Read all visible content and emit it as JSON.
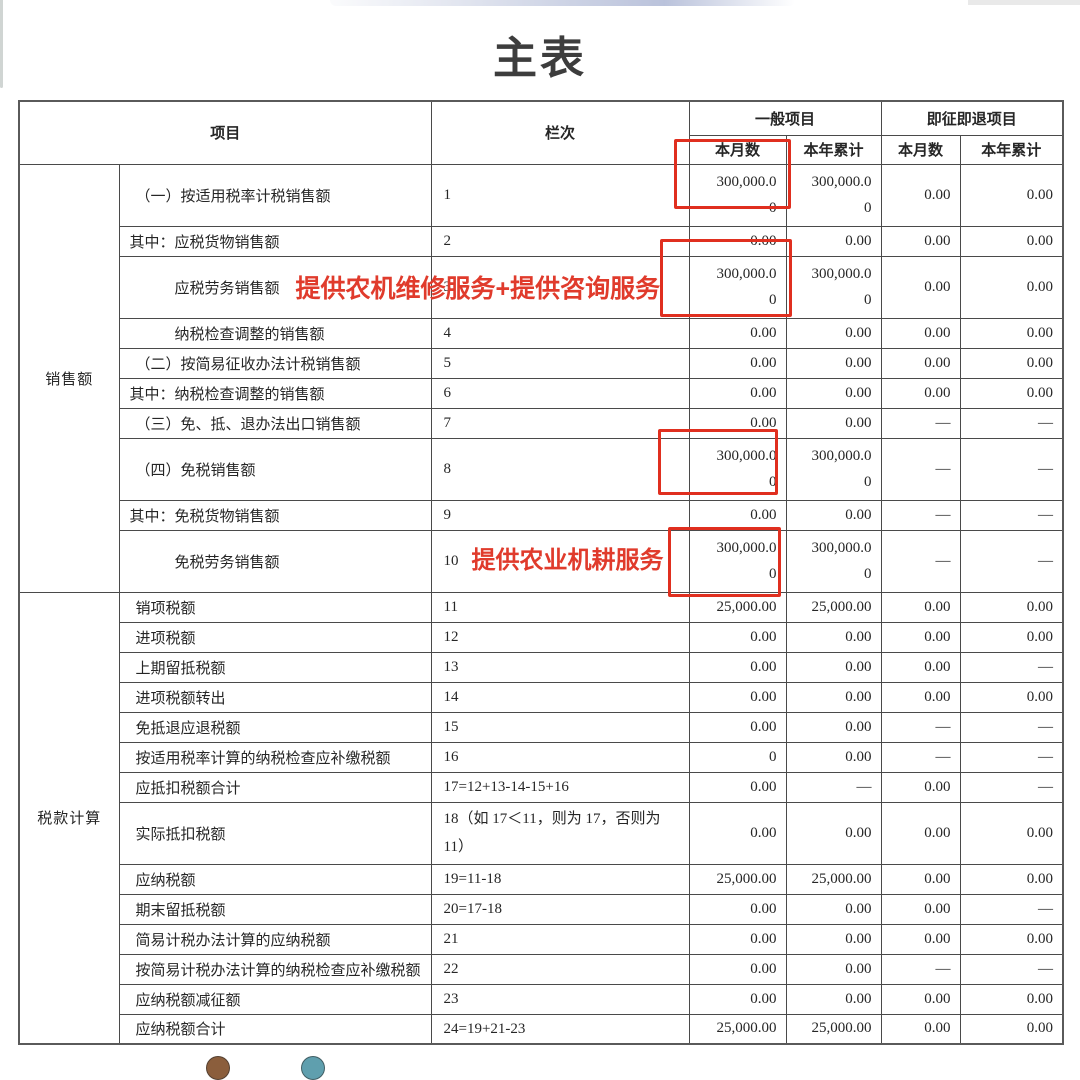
{
  "title": "主表",
  "colors": {
    "annotation_red": "#e03b2c",
    "highlight_box_red": "#e02f1f",
    "table_border": "#4a4a4a",
    "text": "#262626",
    "title_text": "#3d3d3d",
    "dot_left_brown": "#8b5e3c",
    "dot_right_teal": "#5f9fae",
    "top_smear_blue": "#8291be"
  },
  "decorations": {
    "bottom_left_dot": "partial-brown-circle",
    "bottom_right_dot": "partial-teal-circle"
  },
  "table": {
    "headers": {
      "item": "项目",
      "column": "栏次",
      "general": "一般项目",
      "refund": "即征即退项目",
      "month": "本月数",
      "ytd": "本年累计"
    },
    "sections": [
      {
        "name": "销售额",
        "rows": [
          {
            "label": "（一）按适用税率计税销售额",
            "col": "1",
            "indent": 1,
            "tall": true,
            "red_box": true,
            "values": [
              "300,000.00",
              "300,000.00",
              "0.00",
              "0.00"
            ]
          },
          {
            "label": "其中：应税货物销售额",
            "col": "2",
            "indent": 0,
            "values": [
              "0.00",
              "0.00",
              "0.00",
              "0.00"
            ]
          },
          {
            "label": "应税劳务销售额",
            "col": "3",
            "indent": 2,
            "tall": true,
            "red_box": true,
            "annotation": "提供农机维修服务+提供咨询服务",
            "values": [
              "300,000.00",
              "300,000.00",
              "0.00",
              "0.00"
            ]
          },
          {
            "label": "纳税检查调整的销售额",
            "col": "4",
            "indent": 2,
            "values": [
              "0.00",
              "0.00",
              "0.00",
              "0.00"
            ]
          },
          {
            "label": "（二）按简易征收办法计税销售额",
            "col": "5",
            "indent": 1,
            "values": [
              "0.00",
              "0.00",
              "0.00",
              "0.00"
            ]
          },
          {
            "label": "其中：纳税检查调整的销售额",
            "col": "6",
            "indent": 0,
            "values": [
              "0.00",
              "0.00",
              "0.00",
              "0.00"
            ]
          },
          {
            "label": "（三）免、抵、退办法出口销售额",
            "col": "7",
            "indent": 1,
            "values": [
              "0.00",
              "0.00",
              "—",
              "—"
            ]
          },
          {
            "label": "（四）免税销售额",
            "col": "8",
            "indent": 1,
            "tall": true,
            "red_box": true,
            "values": [
              "300,000.00",
              "300,000.00",
              "—",
              "—"
            ]
          },
          {
            "label": "其中：免税货物销售额",
            "col": "9",
            "indent": 0,
            "values": [
              "0.00",
              "0.00",
              "—",
              "—"
            ]
          },
          {
            "label": "免税劳务销售额",
            "col": "10",
            "indent": 2,
            "tall": true,
            "red_box": true,
            "col_annotation": "提供农业机耕服务",
            "values": [
              "300,000.00",
              "300,000.00",
              "—",
              "—"
            ]
          }
        ]
      },
      {
        "name": "税款计算",
        "rows": [
          {
            "label": "销项税额",
            "col": "11",
            "indent": 1,
            "values": [
              "25,000.00",
              "25,000.00",
              "0.00",
              "0.00"
            ]
          },
          {
            "label": "进项税额",
            "col": "12",
            "indent": 1,
            "values": [
              "0.00",
              "0.00",
              "0.00",
              "0.00"
            ]
          },
          {
            "label": "上期留抵税额",
            "col": "13",
            "indent": 1,
            "values": [
              "0.00",
              "0.00",
              "0.00",
              "—"
            ]
          },
          {
            "label": "进项税额转出",
            "col": "14",
            "indent": 1,
            "values": [
              "0.00",
              "0.00",
              "0.00",
              "0.00"
            ]
          },
          {
            "label": "免抵退应退税额",
            "col": "15",
            "indent": 1,
            "values": [
              "0.00",
              "0.00",
              "—",
              "—"
            ]
          },
          {
            "label": "按适用税率计算的纳税检查应补缴税额",
            "col": "16",
            "indent": 1,
            "values": [
              "0",
              "0.00",
              "—",
              "—"
            ]
          },
          {
            "label": "应抵扣税额合计",
            "col": "17=12+13-14-15+16",
            "indent": 1,
            "values": [
              "0.00",
              "—",
              "0.00",
              "—"
            ]
          },
          {
            "label": "实际抵扣税额",
            "col": "18（如 17＜11，则为 17，否则为 11）",
            "indent": 1,
            "tall": true,
            "values": [
              "0.00",
              "0.00",
              "0.00",
              "0.00"
            ]
          },
          {
            "label": "应纳税额",
            "col": "19=11-18",
            "indent": 1,
            "values": [
              "25,000.00",
              "25,000.00",
              "0.00",
              "0.00"
            ]
          },
          {
            "label": "期末留抵税额",
            "col": "20=17-18",
            "indent": 1,
            "values": [
              "0.00",
              "0.00",
              "0.00",
              "—"
            ]
          },
          {
            "label": "简易计税办法计算的应纳税额",
            "col": "21",
            "indent": 1,
            "values": [
              "0.00",
              "0.00",
              "0.00",
              "0.00"
            ]
          },
          {
            "label": "按简易计税办法计算的纳税检查应补缴税额",
            "col": "22",
            "indent": 1,
            "values": [
              "0.00",
              "0.00",
              "—",
              "—"
            ]
          },
          {
            "label": "应纳税额减征额",
            "col": "23",
            "indent": 1,
            "values": [
              "0.00",
              "0.00",
              "0.00",
              "0.00"
            ]
          },
          {
            "label": "应纳税额合计",
            "col": "24=19+21-23",
            "indent": 1,
            "values": [
              "25,000.00",
              "25,000.00",
              "0.00",
              "0.00"
            ]
          }
        ]
      }
    ]
  }
}
